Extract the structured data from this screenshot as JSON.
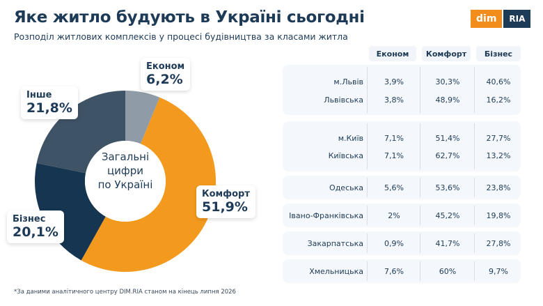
{
  "header": {
    "title": "Яке житло будують в Україні сьогодні",
    "subtitle": "Розподіл житлових комплексів у процесі будівництва за класами житла",
    "logo_left": "dim",
    "logo_right": "RIA"
  },
  "donut": {
    "center_text": [
      "Загальні",
      "цифри",
      "по Україні"
    ],
    "callouts": {
      "econom": {
        "label": "Економ",
        "value": "6,2%"
      },
      "comfort": {
        "label": "Комфорт",
        "value": "51,9%"
      },
      "business": {
        "label": "Бізнес",
        "value": "20,1%"
      },
      "other": {
        "label": "Інше",
        "value": "21,8%"
      }
    }
  },
  "colors": {
    "econom": "#8f9ba6",
    "comfort": "#f39a1e",
    "business": "#163550",
    "other": "#3e5366",
    "text": "#1d3a57"
  },
  "chart_data": [
    {
      "type": "pie",
      "categories": [
        "Економ",
        "Комфорт",
        "Бізнес",
        "Інше"
      ],
      "values": [
        6.2,
        51.9,
        20.1,
        21.8
      ],
      "title": "Загальні цифри по Україні"
    },
    {
      "type": "table",
      "columns": [
        "Економ",
        "Комфорт",
        "Бізнес"
      ],
      "rows": [
        {
          "name": "м.Львів",
          "values": [
            "3,9%",
            "30,3%",
            "40,6%"
          ]
        },
        {
          "name": "Львівська",
          "values": [
            "3,8%",
            "48,9%",
            "16,2%"
          ]
        },
        {
          "name": "м.Київ",
          "values": [
            "7,1%",
            "51,4%",
            "27,7%"
          ]
        },
        {
          "name": "Київська",
          "values": [
            "7,1%",
            "62,7%",
            "13,2%"
          ]
        },
        {
          "name": "Одеська",
          "values": [
            "5,6%",
            "53,6%",
            "23,8%"
          ]
        },
        {
          "name": "Івано-Франківська",
          "values": [
            "2%",
            "45,2%",
            "19,8%"
          ]
        },
        {
          "name": "Закарпатська",
          "values": [
            "0,9%",
            "41,7%",
            "27,8%"
          ]
        },
        {
          "name": "Хмельницька",
          "values": [
            "7,6%",
            "60%",
            "9,7%"
          ]
        }
      ]
    }
  ],
  "footnote": "*За даними аналітичного центру DIM.RIA станом на кінець липня 2026"
}
